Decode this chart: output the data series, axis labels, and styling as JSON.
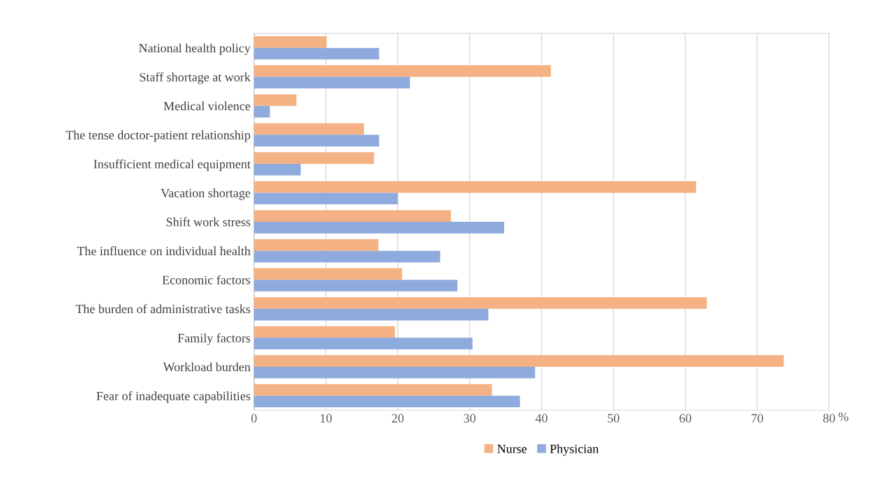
{
  "chart_data": {
    "type": "bar",
    "orientation": "horizontal",
    "xlabel": "%",
    "categories": [
      "National health policy",
      "Staff shortage at work",
      "Medical violence",
      "The tense doctor-patient relationship",
      "Insufficient medical equipment",
      "Vacation shortage",
      "Shift work stress",
      "The influence on individual health",
      "Economic factors",
      "The burden of administrative tasks",
      "Family factors",
      "Workload burden",
      "Fear of inadequate capabilities"
    ],
    "series": [
      {
        "name": "Nurse",
        "color": "#f4b183",
        "values": [
          10.1,
          41.3,
          5.9,
          15.3,
          16.7,
          61.5,
          27.4,
          17.3,
          20.6,
          63.0,
          19.6,
          73.7,
          33.1
        ]
      },
      {
        "name": "Physician",
        "color": "#8faadc",
        "values": [
          17.4,
          21.7,
          2.2,
          17.4,
          6.5,
          20.0,
          34.8,
          25.9,
          28.3,
          32.6,
          30.4,
          39.1,
          37.0
        ]
      }
    ],
    "xlim": [
      0,
      80
    ],
    "xticks": [
      0,
      10,
      20,
      30,
      40,
      50,
      60,
      70,
      80
    ],
    "grid": "x",
    "legend": "bottom"
  }
}
